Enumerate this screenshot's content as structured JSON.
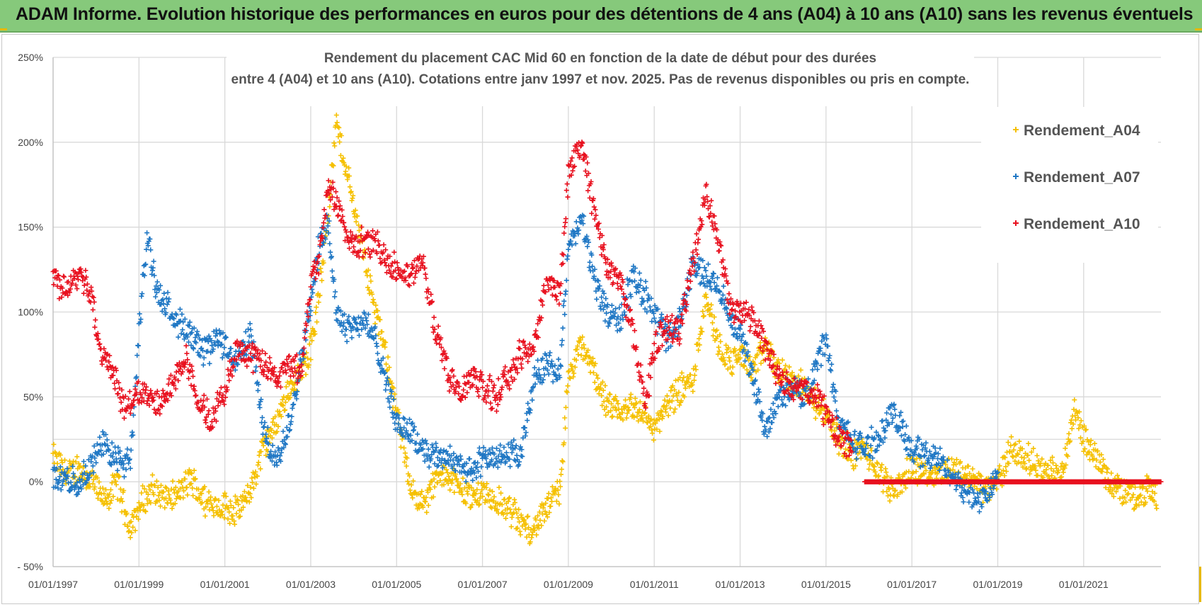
{
  "header": {
    "title": "ADAM Informe. Evolution historique des performances en euros pour des détentions de 4 ans (A04) à 10 ans (A10) sans les revenus éventuels"
  },
  "colors": {
    "banner": "#86c97b",
    "A04": "#f5c000",
    "A07": "#1f77c4",
    "A10": "#e8101e"
  },
  "chart_data": {
    "type": "scatter",
    "title_line1": "Rendement du placement CAC Mid 60 en fonction de la date de début pour des durées",
    "title_line2": "entre 4 (A04) et 10 ans (A10).  Cotations entre janv 1997 et nov. 2025. Pas de revenus disponibles ou pris en compte.",
    "xlabel": "",
    "ylabel": "",
    "x_range": [
      1997.0,
      2022.8
    ],
    "ylim": [
      -50,
      250
    ],
    "y_ticks": [
      "250%",
      "200%",
      "150%",
      "100%",
      "50%",
      "0%",
      "- 50%"
    ],
    "y_tick_values": [
      250,
      200,
      150,
      100,
      50,
      0,
      -50
    ],
    "x_ticks": [
      "01/01/1997",
      "01/01/1999",
      "01/01/2001",
      "01/01/2003",
      "01/01/2005",
      "01/01/2007",
      "01/01/2009",
      "01/01/2011",
      "01/01/2013",
      "01/01/2015",
      "01/01/2017",
      "01/01/2019",
      "01/01/2021"
    ],
    "x_tick_values": [
      1997,
      1999,
      2001,
      2003,
      2005,
      2007,
      2009,
      2011,
      2013,
      2015,
      2017,
      2019,
      2021
    ],
    "legend_position": "top-right",
    "series": [
      {
        "name": "Rendement_A04",
        "color": "#f5c000",
        "x": [
          1997.0,
          1997.3,
          1997.6,
          1997.9,
          1998.2,
          1998.5,
          1998.8,
          1999.0,
          1999.3,
          1999.6,
          1999.9,
          2000.2,
          2000.5,
          2000.8,
          2001.0,
          2001.3,
          2001.6,
          2001.9,
          2002.2,
          2002.5,
          2002.8,
          2003.0,
          2003.2,
          2003.4,
          2003.6,
          2003.9,
          2004.2,
          2004.5,
          2004.8,
          2005.0,
          2005.3,
          2005.6,
          2005.9,
          2006.2,
          2006.5,
          2006.8,
          2007.0,
          2007.3,
          2007.6,
          2007.9,
          2008.2,
          2008.5,
          2008.8,
          2009.0,
          2009.3,
          2009.6,
          2009.9,
          2010.2,
          2010.5,
          2010.8,
          2011.0,
          2011.3,
          2011.6,
          2011.9,
          2012.2,
          2012.5,
          2012.8,
          2013.0,
          2013.3,
          2013.6,
          2013.9,
          2014.2,
          2014.5,
          2014.8,
          2015.0,
          2015.3,
          2015.6,
          2015.9,
          2016.2,
          2016.5,
          2016.8,
          2017.0,
          2017.3,
          2017.6,
          2017.9,
          2018.2,
          2018.5,
          2018.8,
          2019.0,
          2019.3,
          2019.6,
          2019.9,
          2020.2,
          2020.5,
          2020.8,
          2021.0,
          2021.3,
          2021.6,
          2021.9,
          2022.2,
          2022.5,
          2022.7
        ],
        "values": [
          15,
          5,
          8,
          0,
          -12,
          0,
          -28,
          -15,
          -5,
          -10,
          -8,
          2,
          -10,
          -15,
          -15,
          -18,
          -5,
          20,
          35,
          55,
          65,
          80,
          110,
          160,
          210,
          175,
          140,
          100,
          70,
          40,
          0,
          -15,
          0,
          5,
          -5,
          -10,
          -5,
          -12,
          -15,
          -25,
          -28,
          -15,
          -5,
          60,
          80,
          65,
          45,
          40,
          45,
          40,
          30,
          45,
          55,
          60,
          110,
          80,
          70,
          75,
          65,
          80,
          65,
          60,
          55,
          45,
          40,
          25,
          15,
          20,
          5,
          -5,
          0,
          10,
          5,
          5,
          8,
          5,
          0,
          -5,
          0,
          20,
          15,
          10,
          5,
          5,
          45,
          25,
          15,
          0,
          -5,
          -8,
          -5,
          -10
        ]
      },
      {
        "name": "Rendement_A07",
        "color": "#1f77c4",
        "x": [
          1997.0,
          1997.3,
          1997.6,
          1997.9,
          1998.2,
          1998.5,
          1998.8,
          1999.0,
          1999.2,
          1999.4,
          1999.6,
          1999.9,
          2000.2,
          2000.5,
          2000.8,
          2001.0,
          2001.3,
          2001.6,
          2001.9,
          2002.2,
          2002.5,
          2002.8,
          2003.0,
          2003.2,
          2003.4,
          2003.6,
          2003.9,
          2004.2,
          2004.5,
          2004.8,
          2005.0,
          2005.3,
          2005.6,
          2005.9,
          2006.2,
          2006.5,
          2006.8,
          2007.0,
          2007.3,
          2007.6,
          2007.9,
          2008.2,
          2008.5,
          2008.8,
          2009.0,
          2009.3,
          2009.6,
          2009.9,
          2010.2,
          2010.5,
          2010.8,
          2011.0,
          2011.3,
          2011.6,
          2011.9,
          2012.2,
          2012.5,
          2012.8,
          2013.0,
          2013.3,
          2013.6,
          2013.9,
          2014.2,
          2014.5,
          2014.8,
          2015.0,
          2015.3,
          2015.6,
          2015.9,
          2016.2,
          2016.5,
          2016.8,
          2017.0,
          2017.3,
          2017.6,
          2017.9,
          2018.2,
          2018.5,
          2018.8,
          2019.0
        ],
        "values": [
          3,
          2,
          0,
          12,
          22,
          12,
          10,
          90,
          145,
          115,
          105,
          95,
          85,
          75,
          85,
          80,
          70,
          90,
          30,
          10,
          35,
          75,
          105,
          140,
          155,
          100,
          90,
          95,
          85,
          55,
          35,
          30,
          20,
          15,
          15,
          10,
          5,
          15,
          15,
          15,
          15,
          60,
          70,
          65,
          135,
          155,
          120,
          100,
          95,
          120,
          110,
          100,
          85,
          95,
          130,
          120,
          115,
          95,
          90,
          60,
          30,
          50,
          55,
          50,
          70,
          85,
          35,
          25,
          20,
          25,
          40,
          30,
          20,
          15,
          15,
          5,
          -5,
          -10,
          -5,
          5
        ]
      },
      {
        "name": "Rendement_A10",
        "color": "#e8101e",
        "x": [
          1997.0,
          1997.3,
          1997.6,
          1997.9,
          1998.1,
          1998.4,
          1998.7,
          1998.9,
          1999.2,
          1999.5,
          1999.8,
          2000.1,
          2000.4,
          2000.7,
          2001.0,
          2001.3,
          2001.6,
          2001.9,
          2002.2,
          2002.5,
          2002.8,
          2003.0,
          2003.2,
          2003.4,
          2003.6,
          2003.9,
          2004.2,
          2004.5,
          2004.8,
          2005.0,
          2005.3,
          2005.6,
          2005.9,
          2006.2,
          2006.5,
          2006.8,
          2007.0,
          2007.3,
          2007.6,
          2007.9,
          2008.2,
          2008.5,
          2008.8,
          2009.0,
          2009.3,
          2009.6,
          2009.9,
          2010.2,
          2010.5,
          2010.8,
          2011.0,
          2011.3,
          2011.6,
          2011.9,
          2012.2,
          2012.5,
          2012.8,
          2013.0,
          2013.3,
          2013.6,
          2013.9,
          2014.2,
          2014.5,
          2014.8,
          2015.0,
          2015.3,
          2015.6
        ],
        "values": [
          120,
          115,
          125,
          110,
          75,
          65,
          40,
          55,
          50,
          45,
          60,
          75,
          45,
          35,
          55,
          80,
          75,
          70,
          60,
          70,
          65,
          120,
          130,
          175,
          165,
          140,
          140,
          140,
          130,
          125,
          120,
          130,
          90,
          65,
          50,
          65,
          55,
          50,
          60,
          75,
          80,
          120,
          110,
          180,
          200,
          160,
          125,
          120,
          90,
          45,
          80,
          90,
          90,
          130,
          170,
          140,
          100,
          100,
          95,
          80,
          60,
          55,
          55,
          50,
          40,
          25,
          20
        ]
      }
    ],
    "zero_line_note": "Rendement_A10 à 0% de 2015.9 à 2022.8",
    "zero_line_x_start": 2015.9,
    "zero_line_x_end": 2022.8
  }
}
